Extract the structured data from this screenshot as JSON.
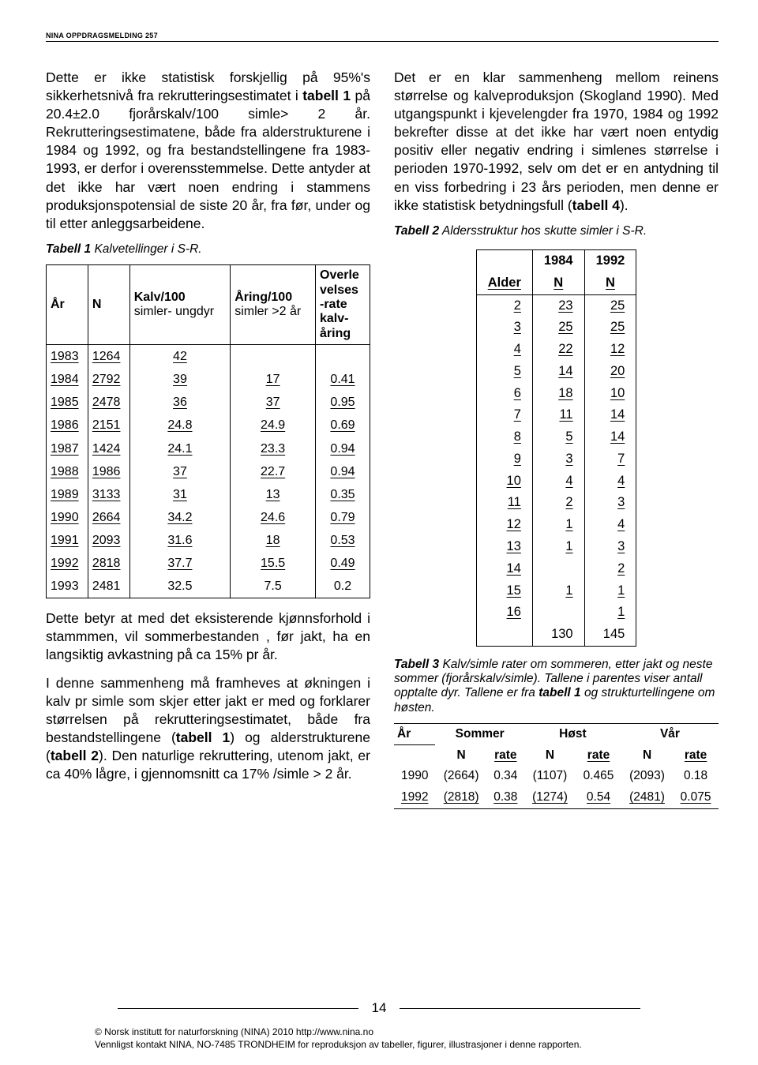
{
  "header": "NINA OPPDRAGSMELDING 257",
  "leftCol": {
    "p1_a": "Dette er ikke statistisk forskjellig på 95%'s sikkerhetsnivå fra rekrutteringsestimatet i ",
    "p1_b": "tabell 1",
    "p1_c": " på 20.4±2.0 fjorårskalv/100 simle> 2 år. Rekrutteringsestimatene, både fra alderstrukturene i 1984 og 1992, og fra bestandstellingene fra 1983-1993, er derfor i overensstemmelse. Dette antyder at det ikke har vært noen endring i stammens produksjonspotensial de siste 20 år, fra før, under og til etter anleggs­arbeidene.",
    "t1_caption_lead": "Tabell 1",
    "t1_caption_rest": " Kalvetellinger i S-R.",
    "t1_headers": {
      "c1": "År",
      "c2": "N",
      "c3a": "Kalv/100",
      "c3b": "simler-\nungdyr",
      "c4a": "Åring/100",
      "c4b": "simler >2 år",
      "c5": "Overle\nvelses\n-rate\nkalv-\nåring"
    },
    "t1_rows": [
      [
        "1983",
        "1264",
        "42",
        "",
        ""
      ],
      [
        "1984",
        "2792",
        "39",
        "17",
        "0.41"
      ],
      [
        "1985",
        "2478",
        "36",
        "37",
        "0.95"
      ],
      [
        "1986",
        "2151",
        "24.8",
        "24.9",
        "0.69"
      ],
      [
        "1987",
        "1424",
        "24.1",
        "23.3",
        "0.94"
      ],
      [
        "1988",
        "1986",
        "37",
        "22.7",
        "0.94"
      ],
      [
        "1989",
        "3133",
        "31",
        "13",
        "0.35"
      ],
      [
        "1990",
        "2664",
        "34.2",
        "24.6",
        "0.79"
      ],
      [
        "1991",
        "2093",
        "31.6",
        "18",
        "0.53"
      ],
      [
        "1992",
        "2818",
        "37.7",
        "15.5",
        "0.49"
      ],
      [
        "1993",
        "2481",
        "32.5",
        "7.5",
        "0.2"
      ]
    ],
    "p2": "Dette betyr at med det eksisterende kjønnsforhold i stammmen, vil sommer­bestanden , før jakt, ha en langsiktig avkastning på ca 15% pr år.",
    "p3_a": "I denne sammenheng må framheves at økningen i kalv pr simle som skjer etter jakt er med og forklarer størrelsen på rekrutteringsestimatet, både fra bestands­tellingene (",
    "p3_b": "tabell 1",
    "p3_c": ") og alderstrukturene (",
    "p3_d": "tabell 2",
    "p3_e": "). Den naturlige rekruttering, utenom jakt, er ca 40% lågre, i gjennomsnitt ca 17% /simle > 2 år."
  },
  "rightCol": {
    "p1_a": "Det er en klar sammenheng mellom rein­ens størrelse og kalveproduksjon (Skogland 1990). Med utgangspunkt i kjevelengder fra 1970, 1984 og 1992 bekrefter disse at det ikke har vært noen entydig positiv eller negativ endring i simlenes størrelse i perioden 1970-1992, selv om det er en antydning til en viss forbedring i 23 års perioden, men denne er ikke statistisk betydningsfull (",
    "p1_b": "tabell 4",
    "p1_c": ").",
    "t2_caption_lead": "Tabell 2",
    "t2_caption_rest": " Aldersstruktur hos skutte simler i S-R.",
    "t2_headers": {
      "c1": "Alder",
      "c2_top": "1984",
      "c2_bot": "N",
      "c3_top": "1992",
      "c3_bot": "N"
    },
    "t2_rows": [
      [
        "2",
        "23",
        "25"
      ],
      [
        "3",
        "25",
        "25"
      ],
      [
        "4",
        "22",
        "12"
      ],
      [
        "5",
        "14",
        "20"
      ],
      [
        "6",
        "18",
        "10"
      ],
      [
        "7",
        "11",
        "14"
      ],
      [
        "8",
        "5",
        "14"
      ],
      [
        "9",
        "3",
        "7"
      ],
      [
        "10",
        "4",
        "4"
      ],
      [
        "11",
        "2",
        "3"
      ],
      [
        "12",
        "1",
        "4"
      ],
      [
        "13",
        "1",
        "3"
      ],
      [
        "14",
        "",
        "2"
      ],
      [
        "15",
        "1",
        "1"
      ],
      [
        "16",
        "",
        "1"
      ]
    ],
    "t2_totals": [
      "",
      "130",
      "145"
    ],
    "t3_caption_lead": "Tabell 3",
    "t3_caption_rest": " Kalv/simle rater om sommeren, etter jakt og neste sommer (fjorårskalv/simle). Tallene i parentes viser antall opptalte dyr. Tallene er fra ",
    "t3_caption_bold": "tabell 1",
    "t3_caption_end": " og strukturtellingene om høsten.",
    "t3_groupheaders": [
      "År",
      "Sommer",
      "Høst",
      "Vår"
    ],
    "t3_subheaders": [
      "",
      "N",
      "rate",
      "N",
      "rate",
      "N",
      "rate"
    ],
    "t3_rows": [
      [
        "1990",
        "(2664)",
        "0.34",
        "(1107)",
        "0.465",
        "(2093)",
        "0.18"
      ],
      [
        "1992",
        "(2818)",
        "0.38",
        "(1274)",
        "0.54",
        "(2481)",
        "0.075"
      ]
    ]
  },
  "pageNumber": "14",
  "copyright1": "© Norsk institutt for naturforskning (NINA) 2010 http://www.nina.no",
  "copyright2": "Vennligst kontakt NINA, NO-7485 TRONDHEIM for reproduksjon av tabeller, figurer, illustrasjoner i denne rapporten."
}
